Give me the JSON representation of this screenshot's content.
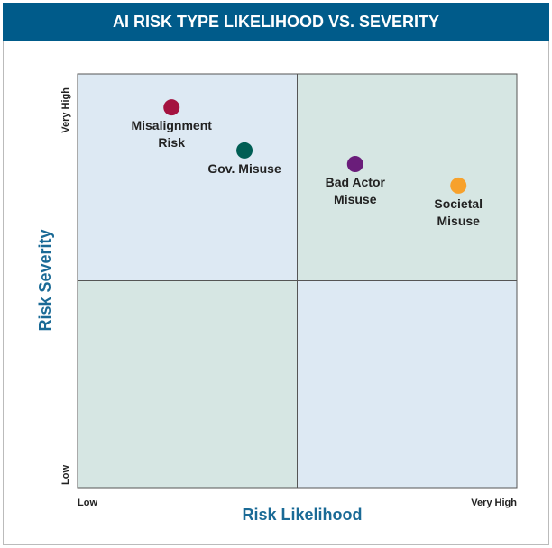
{
  "chart_data": {
    "type": "scatter",
    "title": "AI RISK TYPE LIKELIHOOD VS. SEVERITY",
    "x_label": "Risk Likelihood",
    "y_label": "Risk Severity",
    "xlim": [
      0,
      10
    ],
    "ylim": [
      0,
      10
    ],
    "xticks": [
      {
        "value": 0,
        "label": "Low"
      },
      {
        "value": 10,
        "label": "Very High"
      }
    ],
    "yticks": [
      {
        "value": 0,
        "label": "Low"
      },
      {
        "value": 10,
        "label": "Very High"
      }
    ],
    "series": [
      {
        "name": "Misalignment Risk",
        "color": "#a4123f",
        "x": [
          2.14
        ],
        "values": [
          9.19
        ]
      },
      {
        "name": "Gov. Misuse",
        "color": "#005e54",
        "x": [
          3.8
        ],
        "values": [
          8.15
        ]
      },
      {
        "name": "Bad Actor Misuse",
        "color": "#6a1d7a",
        "x": [
          6.32
        ],
        "values": [
          7.82
        ]
      },
      {
        "name": "Societal Misuse",
        "color": "#f7a12c",
        "x": [
          8.67
        ],
        "values": [
          7.3
        ]
      }
    ]
  }
}
